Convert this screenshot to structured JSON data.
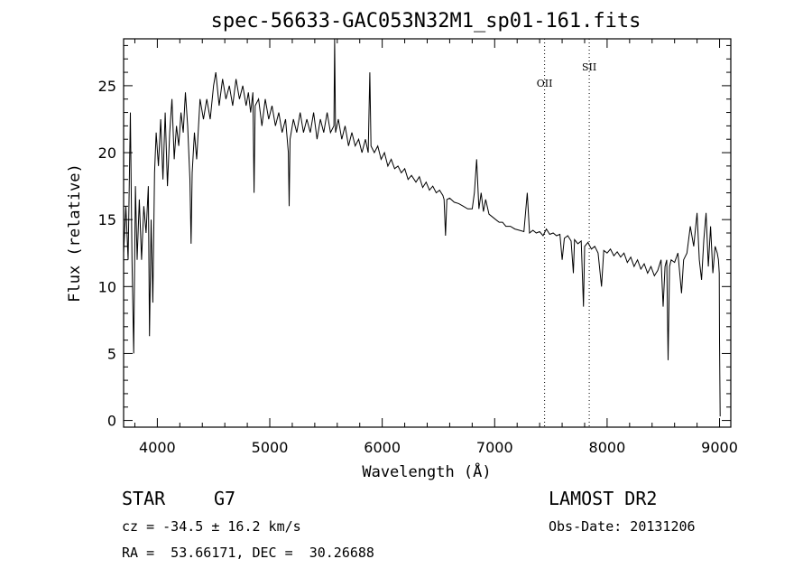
{
  "chart_data": {
    "type": "line",
    "title": "spec-56633-GAC053N32M1_sp01-161.fits",
    "xlabel": "Wavelength (Å)",
    "ylabel": "Flux (relative)",
    "xlim": [
      3700,
      9100
    ],
    "ylim": [
      -0.5,
      28.5
    ],
    "x_ticks": [
      4000,
      5000,
      6000,
      7000,
      8000,
      9000
    ],
    "y_ticks": [
      0,
      5,
      10,
      15,
      20,
      25
    ],
    "grid": false,
    "series": [
      {
        "points": [
          [
            3700,
            12.5
          ],
          [
            3720,
            16.0
          ],
          [
            3740,
            12.0
          ],
          [
            3760,
            23.0
          ],
          [
            3775,
            12.0
          ],
          [
            3790,
            5.0
          ],
          [
            3805,
            17.5
          ],
          [
            3820,
            12.0
          ],
          [
            3840,
            16.5
          ],
          [
            3860,
            12.0
          ],
          [
            3880,
            16.0
          ],
          [
            3900,
            14.0
          ],
          [
            3920,
            17.5
          ],
          [
            3930,
            6.3
          ],
          [
            3945,
            15.0
          ],
          [
            3960,
            8.8
          ],
          [
            3975,
            18.5
          ],
          [
            3990,
            21.5
          ],
          [
            4010,
            19.0
          ],
          [
            4030,
            22.5
          ],
          [
            4050,
            18.0
          ],
          [
            4070,
            23.0
          ],
          [
            4090,
            17.5
          ],
          [
            4110,
            21.5
          ],
          [
            4130,
            24.0
          ],
          [
            4150,
            19.5
          ],
          [
            4170,
            22.0
          ],
          [
            4190,
            20.5
          ],
          [
            4210,
            23.0
          ],
          [
            4230,
            21.5
          ],
          [
            4250,
            24.5
          ],
          [
            4270,
            22.0
          ],
          [
            4290,
            18.0
          ],
          [
            4300,
            13.2
          ],
          [
            4310,
            18.5
          ],
          [
            4330,
            21.5
          ],
          [
            4350,
            19.5
          ],
          [
            4380,
            24.0
          ],
          [
            4410,
            22.5
          ],
          [
            4440,
            24.0
          ],
          [
            4470,
            22.5
          ],
          [
            4500,
            25.0
          ],
          [
            4520,
            26.0
          ],
          [
            4550,
            23.5
          ],
          [
            4580,
            25.5
          ],
          [
            4610,
            24.0
          ],
          [
            4640,
            25.0
          ],
          [
            4670,
            23.5
          ],
          [
            4700,
            25.5
          ],
          [
            4730,
            24.0
          ],
          [
            4760,
            25.0
          ],
          [
            4790,
            23.5
          ],
          [
            4810,
            24.5
          ],
          [
            4830,
            23.0
          ],
          [
            4850,
            24.5
          ],
          [
            4860,
            17.0
          ],
          [
            4870,
            23.5
          ],
          [
            4900,
            24.0
          ],
          [
            4930,
            22.0
          ],
          [
            4960,
            24.0
          ],
          [
            4990,
            22.5
          ],
          [
            5020,
            23.5
          ],
          [
            5050,
            22.0
          ],
          [
            5080,
            23.0
          ],
          [
            5110,
            21.5
          ],
          [
            5140,
            22.5
          ],
          [
            5165,
            20.0
          ],
          [
            5172,
            16.0
          ],
          [
            5180,
            21.0
          ],
          [
            5210,
            22.5
          ],
          [
            5240,
            21.5
          ],
          [
            5270,
            23.0
          ],
          [
            5300,
            21.5
          ],
          [
            5330,
            22.5
          ],
          [
            5360,
            21.5
          ],
          [
            5390,
            23.0
          ],
          [
            5420,
            21.0
          ],
          [
            5450,
            22.5
          ],
          [
            5480,
            21.5
          ],
          [
            5510,
            23.0
          ],
          [
            5540,
            21.5
          ],
          [
            5570,
            22.0
          ],
          [
            5577,
            28.5
          ],
          [
            5585,
            21.5
          ],
          [
            5610,
            22.5
          ],
          [
            5640,
            21.0
          ],
          [
            5670,
            22.0
          ],
          [
            5700,
            20.5
          ],
          [
            5730,
            21.5
          ],
          [
            5760,
            20.5
          ],
          [
            5790,
            21.0
          ],
          [
            5820,
            20.0
          ],
          [
            5850,
            21.0
          ],
          [
            5875,
            20.0
          ],
          [
            5890,
            26.0
          ],
          [
            5900,
            20.5
          ],
          [
            5930,
            20.0
          ],
          [
            5960,
            20.5
          ],
          [
            5990,
            19.5
          ],
          [
            6020,
            20.0
          ],
          [
            6050,
            19.0
          ],
          [
            6080,
            19.5
          ],
          [
            6110,
            18.8
          ],
          [
            6140,
            19.0
          ],
          [
            6170,
            18.5
          ],
          [
            6200,
            18.8
          ],
          [
            6230,
            18.0
          ],
          [
            6260,
            18.3
          ],
          [
            6300,
            17.8
          ],
          [
            6330,
            18.2
          ],
          [
            6360,
            17.4
          ],
          [
            6390,
            17.8
          ],
          [
            6420,
            17.2
          ],
          [
            6450,
            17.5
          ],
          [
            6480,
            17.0
          ],
          [
            6510,
            17.2
          ],
          [
            6540,
            16.8
          ],
          [
            6550,
            16.5
          ],
          [
            6563,
            13.8
          ],
          [
            6575,
            16.5
          ],
          [
            6600,
            16.6
          ],
          [
            6640,
            16.3
          ],
          [
            6680,
            16.2
          ],
          [
            6720,
            16.0
          ],
          [
            6760,
            15.8
          ],
          [
            6800,
            15.8
          ],
          [
            6820,
            17.0
          ],
          [
            6840,
            19.5
          ],
          [
            6860,
            15.8
          ],
          [
            6880,
            17.0
          ],
          [
            6900,
            15.6
          ],
          [
            6920,
            16.5
          ],
          [
            6950,
            15.4
          ],
          [
            6980,
            15.2
          ],
          [
            7010,
            15.0
          ],
          [
            7040,
            14.8
          ],
          [
            7070,
            14.8
          ],
          [
            7100,
            14.5
          ],
          [
            7140,
            14.5
          ],
          [
            7180,
            14.3
          ],
          [
            7220,
            14.2
          ],
          [
            7260,
            14.1
          ],
          [
            7290,
            17.0
          ],
          [
            7310,
            14.0
          ],
          [
            7340,
            14.2
          ],
          [
            7370,
            14.0
          ],
          [
            7400,
            14.1
          ],
          [
            7430,
            13.8
          ],
          [
            7460,
            14.3
          ],
          [
            7490,
            13.9
          ],
          [
            7520,
            14.0
          ],
          [
            7550,
            13.8
          ],
          [
            7580,
            13.9
          ],
          [
            7600,
            12.0
          ],
          [
            7620,
            13.6
          ],
          [
            7650,
            13.8
          ],
          [
            7680,
            13.4
          ],
          [
            7700,
            11.0
          ],
          [
            7710,
            13.5
          ],
          [
            7740,
            13.2
          ],
          [
            7770,
            13.4
          ],
          [
            7790,
            8.5
          ],
          [
            7800,
            13.0
          ],
          [
            7830,
            13.3
          ],
          [
            7860,
            12.8
          ],
          [
            7890,
            13.0
          ],
          [
            7920,
            12.5
          ],
          [
            7950,
            10.0
          ],
          [
            7970,
            12.7
          ],
          [
            8000,
            12.5
          ],
          [
            8030,
            12.8
          ],
          [
            8060,
            12.3
          ],
          [
            8090,
            12.6
          ],
          [
            8120,
            12.2
          ],
          [
            8150,
            12.5
          ],
          [
            8180,
            11.8
          ],
          [
            8210,
            12.2
          ],
          [
            8240,
            11.5
          ],
          [
            8270,
            12.0
          ],
          [
            8300,
            11.3
          ],
          [
            8330,
            11.7
          ],
          [
            8360,
            11.0
          ],
          [
            8390,
            11.5
          ],
          [
            8420,
            10.8
          ],
          [
            8450,
            11.2
          ],
          [
            8480,
            12.0
          ],
          [
            8498,
            8.5
          ],
          [
            8515,
            11.5
          ],
          [
            8530,
            12.0
          ],
          [
            8542,
            4.5
          ],
          [
            8555,
            11.5
          ],
          [
            8570,
            12.0
          ],
          [
            8600,
            11.8
          ],
          [
            8630,
            12.5
          ],
          [
            8662,
            9.5
          ],
          [
            8680,
            12.0
          ],
          [
            8710,
            12.5
          ],
          [
            8740,
            14.5
          ],
          [
            8770,
            13.0
          ],
          [
            8800,
            15.5
          ],
          [
            8820,
            12.0
          ],
          [
            8840,
            10.5
          ],
          [
            8860,
            13.5
          ],
          [
            8880,
            15.5
          ],
          [
            8900,
            11.5
          ],
          [
            8920,
            14.5
          ],
          [
            8940,
            11.0
          ],
          [
            8960,
            13.0
          ],
          [
            8980,
            12.5
          ],
          [
            8990,
            12.0
          ],
          [
            8997,
            11.0
          ],
          [
            9000,
            6.0
          ],
          [
            9005,
            0.3
          ]
        ]
      }
    ],
    "line_markers": [
      {
        "label": "OII",
        "x": 7444
      },
      {
        "label": "SII",
        "x": 7841
      }
    ]
  },
  "info": {
    "class": "STAR",
    "subclass": "G7",
    "survey": "LAMOST DR2",
    "redshift": "cz = -34.5 ± 16.2 km/s",
    "obs_date": "Obs-Date: 20131206",
    "coords": "RA =  53.66171, DEC =  30.26688"
  }
}
